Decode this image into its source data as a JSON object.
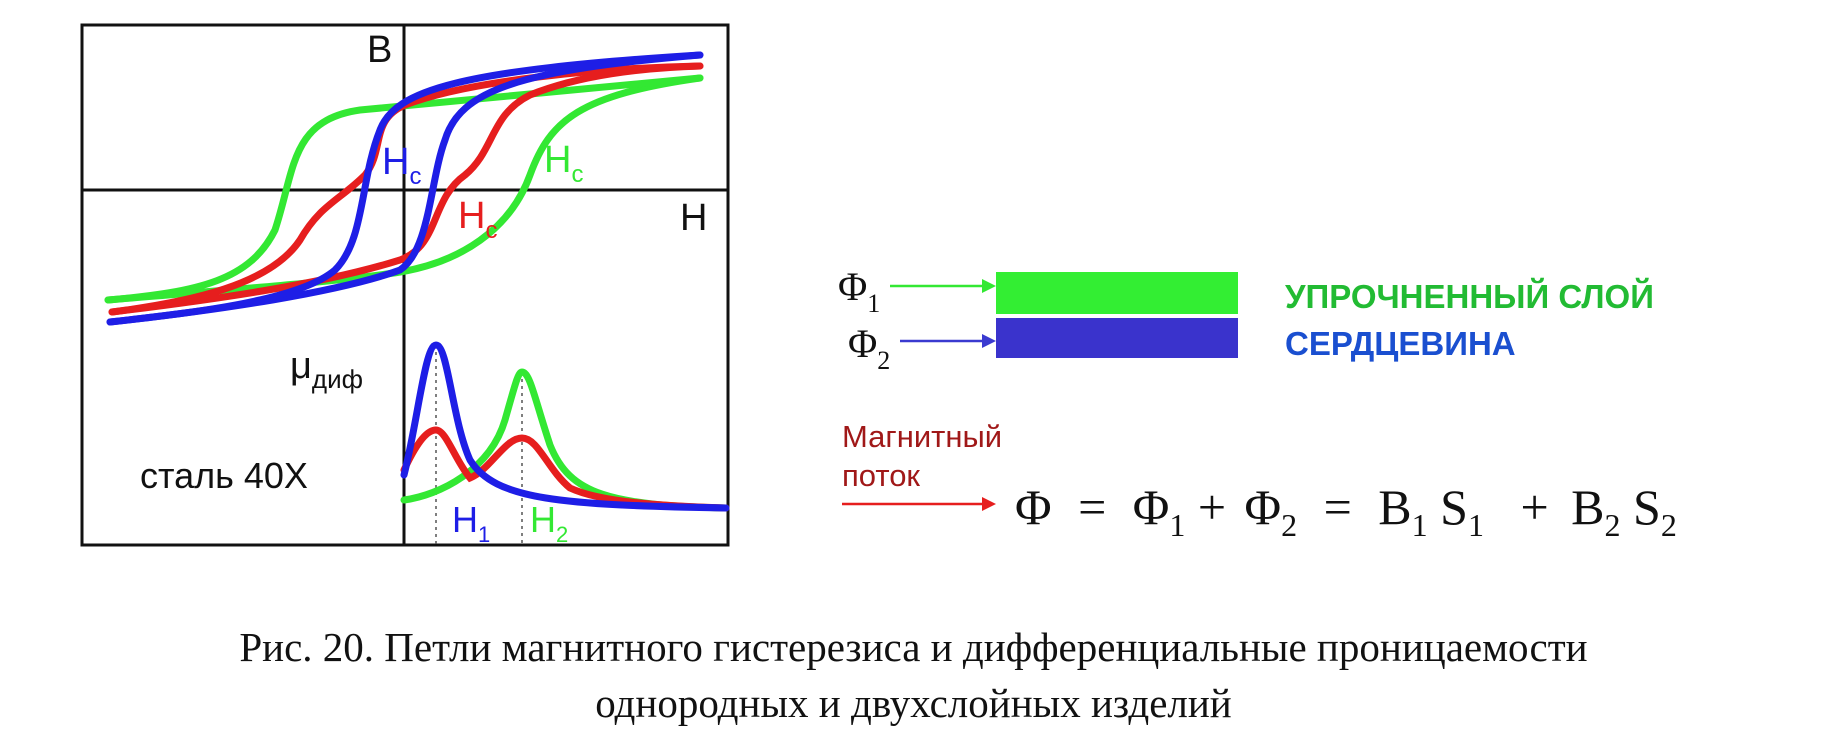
{
  "colors": {
    "green": "#33e833",
    "red": "#e61e1e",
    "blue": "#1e1ee6",
    "green_text": "#22bb33",
    "blue_text": "#1a4fd0",
    "dark_red_text": "#a01818",
    "arrow_blue": "#3a3ad0",
    "layer_blue": "#3a33cc"
  },
  "plot": {
    "axis_b": "B",
    "axis_h": "H",
    "hc_sub": "c",
    "hc_main": "H",
    "mu_main": "μ",
    "mu_sub": "диф",
    "steel": "сталь 40Х",
    "h1_main": "H",
    "h1_sub": "1",
    "h2_main": "H",
    "h2_sub": "2"
  },
  "layers": {
    "phi_symbol": "Φ",
    "phi1_sub": "1",
    "phi2_sub": "2",
    "hardened_layer": "УПРОЧНЕННЫЙ СЛОЙ",
    "core": "СЕРДЦЕВИНА"
  },
  "flux": {
    "label_line1": "Магнитный",
    "label_line2": "поток"
  },
  "formula": {
    "phi": "Φ",
    "eq": "=",
    "plus": "+",
    "b": "B",
    "s": "S",
    "sub1": "1",
    "sub2": "2"
  },
  "caption": {
    "line1": "Рис. 20. Петли магнитного гистерезиса и дифференциальные проницаемости",
    "line2": "однородных и двухслойных изделий"
  }
}
